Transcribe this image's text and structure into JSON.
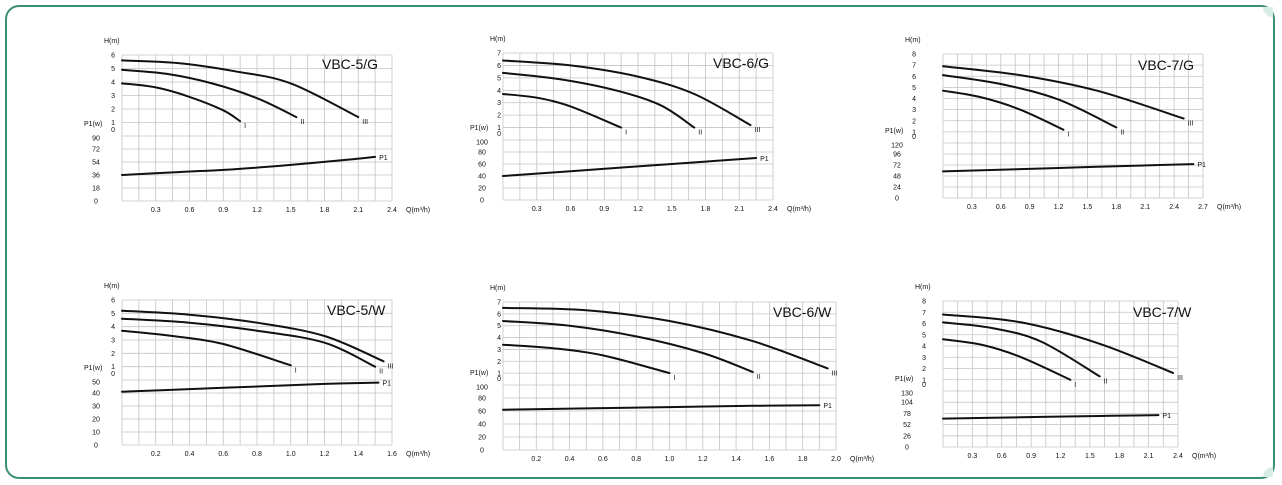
{
  "charts": [
    {
      "title": "VBC-5/G",
      "h_label": "H(m)",
      "p_label": "P1(w)",
      "q_label": "Q(m³/h)",
      "h_ticks": [
        "6",
        "5",
        "4",
        "3",
        "2",
        "1",
        "0"
      ],
      "p_ticks": [
        "90",
        "72",
        "54",
        "36",
        "18",
        "0"
      ],
      "q_ticks": [
        "0.3",
        "0.6",
        "0.9",
        "1.2",
        "1.5",
        "1.8",
        "2.1",
        "2.4"
      ],
      "q_max": 2.4,
      "h_max": 6,
      "p_max": 90,
      "head_curves": [
        {
          "label": "I",
          "points": [
            [
              0,
              3.9
            ],
            [
              0.3,
              3.6
            ],
            [
              0.6,
              2.9
            ],
            [
              0.9,
              1.9
            ],
            [
              1.05,
              1.1
            ]
          ]
        },
        {
          "label": "II",
          "points": [
            [
              0,
              4.9
            ],
            [
              0.4,
              4.6
            ],
            [
              0.8,
              3.9
            ],
            [
              1.2,
              2.8
            ],
            [
              1.55,
              1.4
            ]
          ]
        },
        {
          "label": "III",
          "points": [
            [
              0,
              5.6
            ],
            [
              0.5,
              5.4
            ],
            [
              1.0,
              4.8
            ],
            [
              1.5,
              3.9
            ],
            [
              2.1,
              1.4
            ]
          ]
        }
      ],
      "power_curve": {
        "label": "P1",
        "points": [
          [
            0,
            36
          ],
          [
            0.5,
            40
          ],
          [
            1.0,
            44
          ],
          [
            1.5,
            50
          ],
          [
            2.0,
            57
          ],
          [
            2.25,
            61
          ]
        ]
      }
    },
    {
      "title": "VBC-6/G",
      "h_label": "H(m)",
      "p_label": "P1(w)",
      "q_label": "Q(m³/h)",
      "h_ticks": [
        "7",
        "6",
        "5",
        "4",
        "3",
        "2",
        "1",
        "0"
      ],
      "p_ticks": [
        "100",
        "80",
        "60",
        "40",
        "20",
        "0"
      ],
      "q_ticks": [
        "0.3",
        "0.6",
        "0.9",
        "1.2",
        "1.5",
        "1.8",
        "2.1",
        "2.4"
      ],
      "q_max": 2.4,
      "h_max": 7,
      "p_max": 100,
      "head_curves": [
        {
          "label": "I",
          "points": [
            [
              0,
              3.7
            ],
            [
              0.3,
              3.4
            ],
            [
              0.6,
              2.7
            ],
            [
              1.05,
              1.0
            ]
          ]
        },
        {
          "label": "II",
          "points": [
            [
              0,
              5.4
            ],
            [
              0.5,
              4.9
            ],
            [
              1.0,
              4.0
            ],
            [
              1.4,
              2.8
            ],
            [
              1.7,
              1.0
            ]
          ]
        },
        {
          "label": "III",
          "points": [
            [
              0,
              6.4
            ],
            [
              0.6,
              6.0
            ],
            [
              1.2,
              5.1
            ],
            [
              1.7,
              3.7
            ],
            [
              2.2,
              1.2
            ]
          ]
        }
      ],
      "power_curve": {
        "label": "P1",
        "points": [
          [
            0,
            40
          ],
          [
            0.6,
            48
          ],
          [
            1.2,
            56
          ],
          [
            1.8,
            64
          ],
          [
            2.25,
            70
          ]
        ]
      }
    },
    {
      "title": "VBC-7/G",
      "h_label": "H(m)",
      "p_label": "P1(w)",
      "q_label": "Q(m³/h)",
      "h_ticks": [
        "8",
        "7",
        "6",
        "5",
        "4",
        "3",
        "2",
        "1",
        "0"
      ],
      "p_ticks": [
        "120",
        "96",
        "72",
        "48",
        "24",
        "0"
      ],
      "q_ticks": [
        "0.3",
        "0.6",
        "0.9",
        "1.2",
        "1.5",
        "1.8",
        "2.1",
        "2.4",
        "2.7"
      ],
      "q_max": 2.7,
      "h_max": 8,
      "p_max": 120,
      "head_curves": [
        {
          "label": "I",
          "points": [
            [
              0,
              4.7
            ],
            [
              0.4,
              4.1
            ],
            [
              0.8,
              3.0
            ],
            [
              1.25,
              1.2
            ]
          ]
        },
        {
          "label": "II",
          "points": [
            [
              0,
              6.1
            ],
            [
              0.6,
              5.3
            ],
            [
              1.2,
              3.9
            ],
            [
              1.8,
              1.4
            ]
          ]
        },
        {
          "label": "III",
          "points": [
            [
              0,
              6.9
            ],
            [
              0.8,
              6.1
            ],
            [
              1.6,
              4.7
            ],
            [
              2.5,
              2.2
            ]
          ]
        }
      ],
      "power_curve": {
        "label": "P1",
        "points": [
          [
            0,
            58
          ],
          [
            0.8,
            63
          ],
          [
            1.6,
            68
          ],
          [
            2.25,
            72
          ],
          [
            2.6,
            74
          ]
        ]
      }
    },
    {
      "title": "VBC-5/W",
      "h_label": "H(m)",
      "p_label": "P1(w)",
      "q_label": "Q(m³/h)",
      "h_ticks": [
        "6",
        "5",
        "4",
        "3",
        "2",
        "1",
        "0"
      ],
      "p_ticks": [
        "50",
        "40",
        "30",
        "20",
        "10",
        "0"
      ],
      "q_ticks": [
        "0.2",
        "0.4",
        "0.6",
        "0.8",
        "1.0",
        "1.2",
        "1.4",
        "1.6"
      ],
      "q_max": 1.6,
      "h_max": 6,
      "p_max": 50,
      "head_curves": [
        {
          "label": "I",
          "points": [
            [
              0,
              3.7
            ],
            [
              0.3,
              3.3
            ],
            [
              0.6,
              2.7
            ],
            [
              1.0,
              1.1
            ]
          ]
        },
        {
          "label": "II",
          "points": [
            [
              0,
              4.6
            ],
            [
              0.4,
              4.3
            ],
            [
              0.8,
              3.7
            ],
            [
              1.2,
              2.8
            ],
            [
              1.5,
              1.0
            ]
          ]
        },
        {
          "label": "III",
          "points": [
            [
              0,
              5.2
            ],
            [
              0.4,
              4.9
            ],
            [
              0.8,
              4.3
            ],
            [
              1.2,
              3.3
            ],
            [
              1.55,
              1.4
            ]
          ]
        }
      ],
      "power_curve": {
        "label": "P1",
        "points": [
          [
            0,
            41
          ],
          [
            0.4,
            43
          ],
          [
            0.8,
            45
          ],
          [
            1.2,
            47
          ],
          [
            1.52,
            48
          ]
        ]
      }
    },
    {
      "title": "VBC-6/W",
      "h_label": "H(m)",
      "p_label": "P1(w)",
      "q_label": "Q(m³/h)",
      "h_ticks": [
        "7",
        "6",
        "5",
        "4",
        "3",
        "2",
        "1",
        "0"
      ],
      "p_ticks": [
        "100",
        "80",
        "60",
        "40",
        "20",
        "0"
      ],
      "q_ticks": [
        "0.2",
        "0.4",
        "0.6",
        "0.8",
        "1.0",
        "1.2",
        "1.4",
        "1.6",
        "1.8",
        "2.0"
      ],
      "q_max": 2.0,
      "h_max": 7,
      "p_max": 100,
      "head_curves": [
        {
          "label": "I",
          "points": [
            [
              0,
              3.4
            ],
            [
              0.3,
              3.1
            ],
            [
              0.6,
              2.5
            ],
            [
              1.0,
              1.0
            ]
          ]
        },
        {
          "label": "II",
          "points": [
            [
              0,
              5.4
            ],
            [
              0.4,
              5.0
            ],
            [
              0.8,
              4.1
            ],
            [
              1.2,
              2.7
            ],
            [
              1.5,
              1.1
            ]
          ]
        },
        {
          "label": "III",
          "points": [
            [
              0,
              6.5
            ],
            [
              0.5,
              6.3
            ],
            [
              1.0,
              5.4
            ],
            [
              1.5,
              3.7
            ],
            [
              1.95,
              1.4
            ]
          ]
        }
      ],
      "power_curve": {
        "label": "P1",
        "points": [
          [
            0,
            62
          ],
          [
            0.5,
            64
          ],
          [
            1.0,
            66
          ],
          [
            1.5,
            68
          ],
          [
            1.9,
            69
          ]
        ]
      }
    },
    {
      "title": "VBC-7/W",
      "h_label": "H(m)",
      "p_label": "P1(w)",
      "q_label": "Q(m³/h)",
      "h_ticks": [
        "8",
        "7",
        "6",
        "5",
        "4",
        "3",
        "2",
        "1",
        "0"
      ],
      "p_ticks": [
        "130",
        "104",
        "78",
        "52",
        "26",
        "0"
      ],
      "q_ticks": [
        "0.3",
        "0.6",
        "0.9",
        "1.2",
        "1.5",
        "1.8",
        "2.1",
        "2.4"
      ],
      "q_max": 2.4,
      "h_max": 8,
      "p_max": 130,
      "head_curves": [
        {
          "label": "I",
          "points": [
            [
              0,
              4.6
            ],
            [
              0.4,
              4.1
            ],
            [
              0.8,
              3.0
            ],
            [
              1.3,
              1.0
            ]
          ]
        },
        {
          "label": "II",
          "points": [
            [
              0,
              6.1
            ],
            [
              0.5,
              5.6
            ],
            [
              1.0,
              4.4
            ],
            [
              1.6,
              1.3
            ]
          ]
        },
        {
          "label": "III",
          "points": [
            [
              0,
              6.8
            ],
            [
              0.8,
              6.1
            ],
            [
              1.6,
              4.2
            ],
            [
              2.35,
              1.6
            ]
          ]
        }
      ],
      "power_curve": {
        "label": "P1",
        "points": [
          [
            0,
            66
          ],
          [
            0.8,
            69
          ],
          [
            1.6,
            72
          ],
          [
            2.2,
            74
          ]
        ]
      }
    }
  ]
}
